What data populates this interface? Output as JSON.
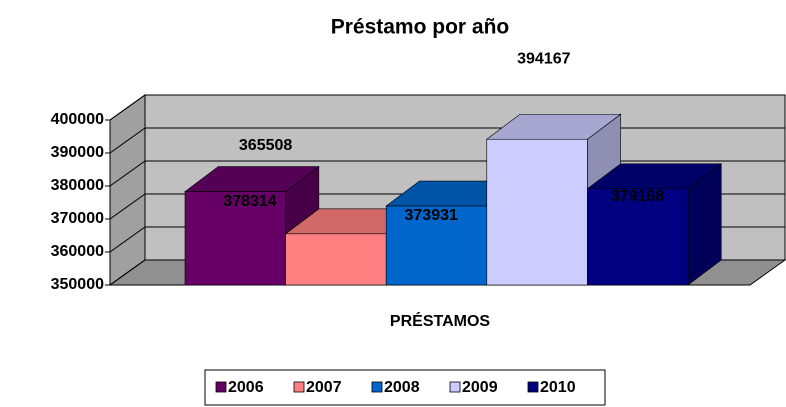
{
  "chart_data": {
    "type": "bar3d",
    "title": "Préstamo por año",
    "categories": [
      "PRÉSTAMOS"
    ],
    "series": [
      {
        "name": "2006",
        "color": "#660066",
        "values": [
          378314
        ]
      },
      {
        "name": "2007",
        "color": "#ff8080",
        "values": [
          365508
        ]
      },
      {
        "name": "2008",
        "color": "#0066cc",
        "values": [
          373931
        ]
      },
      {
        "name": "2009",
        "color": "#ccccff",
        "values": [
          394167
        ]
      },
      {
        "name": "2010",
        "color": "#000080",
        "values": [
          379168
        ]
      }
    ],
    "ylim": [
      350000,
      400000
    ],
    "yticks": [
      350000,
      360000,
      370000,
      380000,
      390000,
      400000
    ],
    "grid": true
  }
}
